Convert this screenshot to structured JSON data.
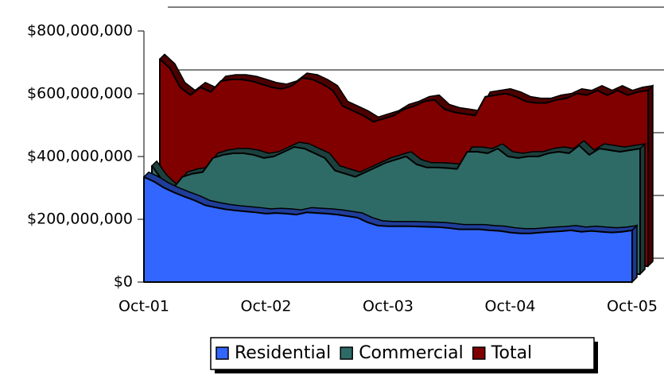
{
  "chart_data": {
    "type": "area3d",
    "categories": [
      "Oct-01",
      null,
      null,
      null,
      null,
      null,
      null,
      null,
      null,
      null,
      null,
      null,
      "Oct-02",
      null,
      null,
      null,
      null,
      null,
      null,
      null,
      null,
      null,
      null,
      null,
      "Oct-03",
      null,
      null,
      null,
      null,
      null,
      null,
      null,
      null,
      null,
      null,
      null,
      "Oct-04",
      null,
      null,
      null,
      null,
      null,
      null,
      null,
      null,
      null,
      null,
      null,
      "Oct-05"
    ],
    "series": [
      {
        "name": "Residential",
        "color": "#3366ff",
        "values": [
          335000000,
          320000000,
          300000000,
          285000000,
          272000000,
          260000000,
          245000000,
          238000000,
          232000000,
          228000000,
          225000000,
          222000000,
          218000000,
          220000000,
          218000000,
          215000000,
          222000000,
          220000000,
          218000000,
          215000000,
          210000000,
          205000000,
          190000000,
          180000000,
          178000000,
          178000000,
          178000000,
          177000000,
          176000000,
          175000000,
          172000000,
          168000000,
          168000000,
          168000000,
          165000000,
          163000000,
          158000000,
          155000000,
          155000000,
          158000000,
          160000000,
          162000000,
          165000000,
          160000000,
          163000000,
          160000000,
          158000000,
          160000000,
          165000000
        ]
      },
      {
        "name": "Commercial",
        "color": "#2f6b66",
        "values": [
          345000000,
          300000000,
          270000000,
          310000000,
          320000000,
          325000000,
          370000000,
          380000000,
          385000000,
          385000000,
          380000000,
          370000000,
          375000000,
          390000000,
          405000000,
          400000000,
          385000000,
          370000000,
          330000000,
          320000000,
          310000000,
          325000000,
          340000000,
          355000000,
          365000000,
          375000000,
          350000000,
          340000000,
          340000000,
          338000000,
          335000000,
          390000000,
          390000000,
          385000000,
          400000000,
          375000000,
          370000000,
          375000000,
          375000000,
          385000000,
          390000000,
          385000000,
          410000000,
          380000000,
          400000000,
          395000000,
          390000000,
          395000000,
          400000000
        ]
      },
      {
        "name": "Total",
        "color": "#800000",
        "values": [
          660000000,
          630000000,
          570000000,
          545000000,
          570000000,
          555000000,
          590000000,
          595000000,
          595000000,
          590000000,
          580000000,
          570000000,
          565000000,
          575000000,
          600000000,
          595000000,
          580000000,
          560000000,
          510000000,
          495000000,
          480000000,
          460000000,
          470000000,
          480000000,
          500000000,
          510000000,
          525000000,
          530000000,
          500000000,
          490000000,
          485000000,
          480000000,
          540000000,
          545000000,
          550000000,
          540000000,
          525000000,
          520000000,
          520000000,
          530000000,
          535000000,
          550000000,
          545000000,
          560000000,
          545000000,
          560000000,
          545000000,
          555000000,
          560000000
        ]
      }
    ],
    "ylim": [
      0,
      800000000
    ],
    "yticks": [
      {
        "value": 0,
        "label": "$0"
      },
      {
        "value": 200000000,
        "label": "$200,000,000"
      },
      {
        "value": 400000000,
        "label": "$400,000,000"
      },
      {
        "value": 600000000,
        "label": "$600,000,000"
      },
      {
        "value": 800000000,
        "label": "$800,000,000"
      }
    ],
    "grid": true,
    "legend": "bottom"
  }
}
